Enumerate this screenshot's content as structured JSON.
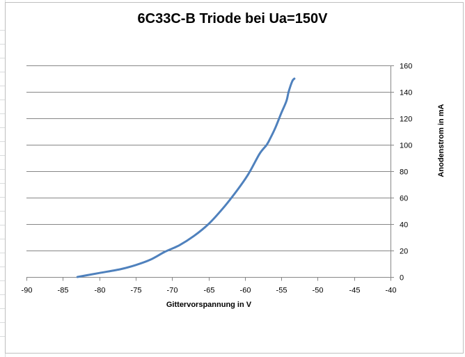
{
  "chart_data": {
    "type": "line",
    "title": "6C33C-B Triode bei Ua=150V",
    "xlabel": "Gittervorspannung in V",
    "ylabel": "Anodenstrom in mA",
    "xlim": [
      -90,
      -40
    ],
    "ylim": [
      0,
      160
    ],
    "xticks": [
      -90,
      -85,
      -80,
      -75,
      -70,
      -65,
      -60,
      -55,
      -50,
      -45,
      -40
    ],
    "yticks": [
      0,
      20,
      40,
      60,
      80,
      100,
      120,
      140,
      160
    ],
    "y_axis_position": "right",
    "grid": "horizontal",
    "legend": "none",
    "series_color": "#4f81bd",
    "series": [
      {
        "x": [
          -83,
          -80,
          -77,
          -75,
          -73,
          -71,
          -69,
          -67,
          -65,
          -63,
          -61,
          -59.5,
          -58,
          -57,
          -56.5,
          -55.8,
          -55,
          -54.3,
          -54,
          -53.5,
          -53.2
        ],
        "y": [
          0,
          3,
          6,
          9,
          13,
          19,
          24,
          31,
          40,
          52,
          66,
          78,
          93,
          100,
          105,
          113,
          124,
          133,
          140,
          148,
          150
        ]
      }
    ]
  }
}
